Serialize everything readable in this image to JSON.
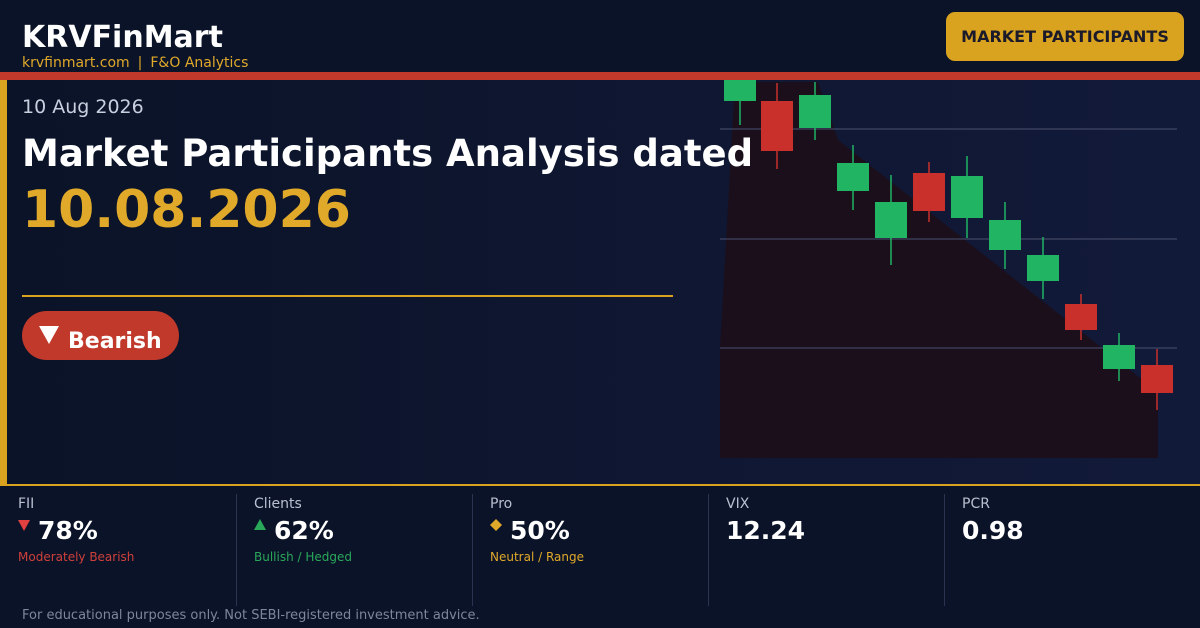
{
  "header": {
    "brand": "KRVFinMart",
    "site": "krvfinmart.com",
    "separator": "|",
    "tagline": "F&O Analytics",
    "button": "MARKET PARTICIPANTS"
  },
  "hero": {
    "date": "10 Aug 2026",
    "title": "Market Participants Analysis dated",
    "date_big": "10.08.2026",
    "badge": "Bearish"
  },
  "stats": [
    {
      "label": "FII",
      "value": "78%",
      "note": "Moderately Bearish"
    },
    {
      "label": "Clients",
      "value": "62%",
      "note": "Bullish / Hedged"
    },
    {
      "label": "Pro",
      "value": "50%",
      "note": "Neutral / Range"
    },
    {
      "label": "VIX",
      "value": "12.24"
    },
    {
      "label": "PCR",
      "value": "0.98"
    }
  ],
  "footer": {
    "disclaimer": "For educational purposes only. Not SEBI-registered investment advice."
  }
}
